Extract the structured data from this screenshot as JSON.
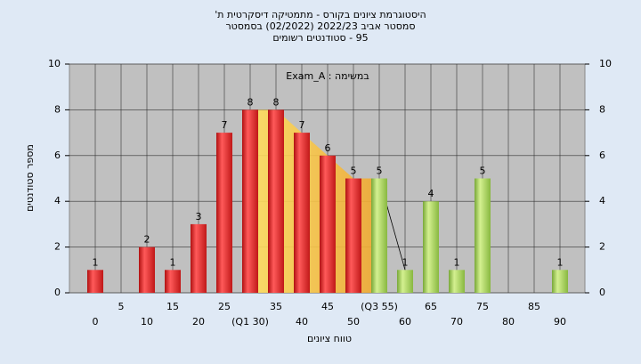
{
  "chart_data": {
    "type": "bar",
    "title": "היסטוגרמת ציונים בקורס - מתמטיקה דיסקרטית ת'",
    "subtitle": "סמסטר אביב 2022/23  (02/2022) בסמסטר",
    "subtitle2": "95 - סטודנטים רשומים",
    "annotation": "במשימה : Exam_A",
    "x_label": "טווח ציונים",
    "y_label": "מספר סטודנטים",
    "categories": [
      "0",
      "5",
      "10",
      "15",
      "20",
      "25",
      "(Q1 30)",
      "35",
      "40",
      "45",
      "50",
      "(Q3 55)",
      "60",
      "65",
      "70",
      "75",
      "80",
      "85",
      "90"
    ],
    "values": [
      1,
      0,
      2,
      1,
      3,
      7,
      8,
      8,
      7,
      6,
      5,
      5,
      1,
      4,
      1,
      5,
      0,
      0,
      1
    ],
    "colors": [
      "#e02020",
      "#9ccc50"
    ],
    "ylim": [
      0,
      10
    ],
    "yticks": [
      0,
      2,
      4,
      6,
      8,
      10
    ],
    "grid": true
  }
}
